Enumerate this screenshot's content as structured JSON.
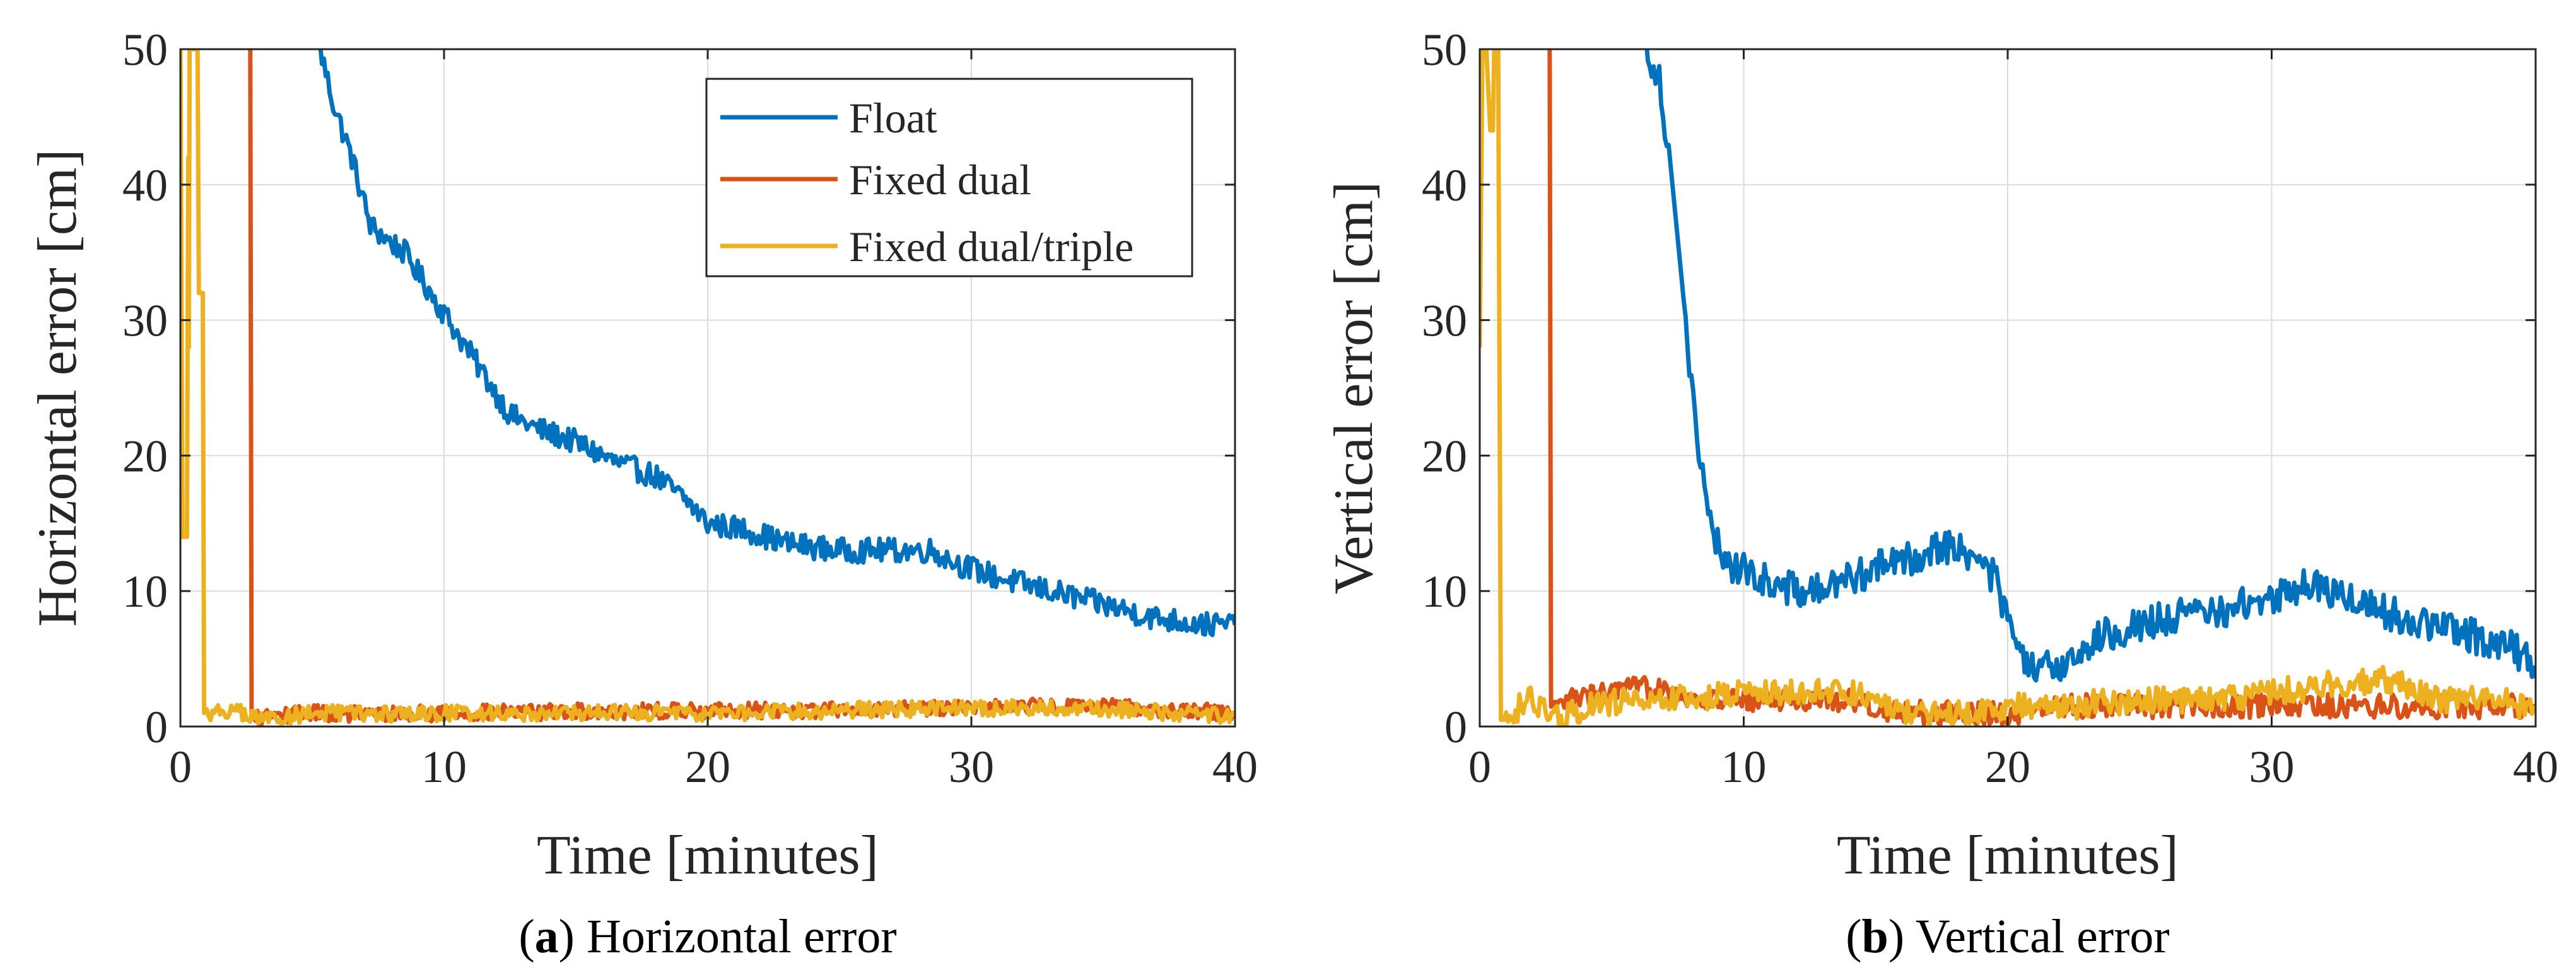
{
  "chart_data": [
    {
      "type": "line",
      "xlabel": "Time [minutes]",
      "ylabel": "Horizontal error [cm]",
      "xlim": [
        0,
        40
      ],
      "ylim": [
        0,
        50
      ],
      "xticks": [
        0,
        10,
        20,
        30,
        40
      ],
      "yticks": [
        0,
        10,
        20,
        30,
        40,
        50
      ],
      "grid": true,
      "legend": "top-right",
      "caption": {
        "letter": "a",
        "open": "(",
        "close": ")",
        "text": " Horizontal error"
      },
      "series": [
        {
          "name": "Float",
          "color": "#0072bd",
          "noise": 0.9,
          "x": [
            5.3,
            5.8,
            6.5,
            7.2,
            7.8,
            8.5,
            9.5,
            10.5,
            11.5,
            12.5,
            13.5,
            15,
            16.5,
            18,
            19.3,
            20,
            21.5,
            23,
            25,
            27,
            28.5,
            29.5,
            31,
            33,
            35,
            37,
            39,
            40
          ],
          "y": [
            50,
            46,
            42,
            37,
            36,
            35,
            32,
            29,
            26,
            23,
            22,
            21,
            19.5,
            18.5,
            16.5,
            15,
            14.5,
            13.5,
            13,
            13,
            13,
            12,
            11,
            10,
            9,
            8,
            7.5,
            7.5
          ]
        },
        {
          "name": "Fixed dual",
          "color": "#d95319",
          "noise": 0.6,
          "x": [
            2.6,
            2.65,
            2.7,
            3.5,
            5,
            8,
            10,
            15,
            20,
            25,
            30,
            35,
            40
          ],
          "y": [
            50,
            50,
            0.5,
            0.8,
            1,
            0.9,
            1,
            1.1,
            1.2,
            1.2,
            1.5,
            1.5,
            1.0
          ]
        },
        {
          "name": "Fixed dual/triple",
          "color": "#edb120",
          "noise": 0.6,
          "x": [
            0,
            0.08,
            0.15,
            0.25,
            0.3,
            0.32,
            0.35,
            0.4,
            0.5,
            0.55,
            0.6,
            0.65,
            0.7,
            0.75,
            0.8,
            0.85,
            0.9,
            1,
            2,
            3,
            5,
            8,
            10,
            15,
            20,
            25,
            30,
            35,
            40
          ],
          "y": [
            50,
            14,
            14,
            14,
            42,
            28,
            50,
            50,
            50,
            50,
            50,
            50,
            32,
            32,
            32,
            32,
            1,
            1,
            1.2,
            0.5,
            1,
            0.9,
            1,
            1,
            1,
            1.2,
            1.4,
            1.3,
            0.8
          ]
        }
      ]
    },
    {
      "type": "line",
      "xlabel": "Time [minutes]",
      "ylabel": "Vertical error [cm]",
      "xlim": [
        0,
        40
      ],
      "ylim": [
        0,
        50
      ],
      "xticks": [
        0,
        10,
        20,
        30,
        40
      ],
      "yticks": [
        0,
        10,
        20,
        30,
        40,
        50
      ],
      "grid": true,
      "caption": {
        "letter": "b",
        "open": "(",
        "close": ")",
        "text": " Vertical error"
      },
      "series": [
        {
          "name": "Float",
          "color": "#0072bd",
          "noise": 1.3,
          "x": [
            6.3,
            6.8,
            7.3,
            7.8,
            8.3,
            8.8,
            9.5,
            10.5,
            12,
            13,
            14,
            15.5,
            16.5,
            17.5,
            18.2,
            19,
            19.5,
            20,
            20.5,
            21,
            22,
            23,
            24,
            26,
            28,
            30,
            31.5,
            33,
            35,
            37,
            39,
            40
          ],
          "y": [
            50,
            48,
            40,
            30,
            20,
            14,
            12,
            11,
            10,
            10,
            11,
            12,
            12.5,
            13.5,
            13,
            12,
            11,
            8,
            5,
            4,
            4.5,
            6,
            7,
            8,
            8.5,
            9.5,
            10.5,
            9.5,
            8,
            7,
            6,
            4.5
          ]
        },
        {
          "name": "Fixed dual",
          "color": "#d95319",
          "noise": 0.9,
          "x": [
            2.6,
            2.65,
            2.7,
            3.5,
            5,
            7,
            8,
            10,
            12,
            14,
            16,
            18,
            20,
            22,
            25,
            28,
            30,
            32,
            35,
            38,
            40
          ],
          "y": [
            50,
            50,
            1,
            2,
            2.5,
            3,
            2,
            2,
            2,
            2,
            1,
            1,
            1,
            1.5,
            1.5,
            1.5,
            1.5,
            1.5,
            1.5,
            1.5,
            1.5
          ]
        },
        {
          "name": "Fixed dual/triple",
          "color": "#edb120",
          "noise": 1.0,
          "x": [
            0,
            0.1,
            0.25,
            0.4,
            0.5,
            0.55,
            0.6,
            0.7,
            0.75,
            0.8,
            1,
            1.5,
            2,
            2.5,
            3,
            4,
            6,
            8,
            10,
            12,
            14,
            15,
            16,
            18,
            20,
            22,
            25,
            28,
            30,
            32,
            34,
            35,
            36,
            38,
            40
          ],
          "y": [
            28,
            50,
            50,
            44,
            44,
            50,
            50,
            50,
            25,
            0.5,
            0.5,
            1.5,
            2,
            1,
            0.5,
            1.5,
            2,
            2,
            2.5,
            2.5,
            2.5,
            2,
            1,
            1,
            1.5,
            1.5,
            2,
            2,
            2.5,
            3,
            3.5,
            3,
            2,
            2,
            1.5
          ]
        }
      ]
    }
  ]
}
